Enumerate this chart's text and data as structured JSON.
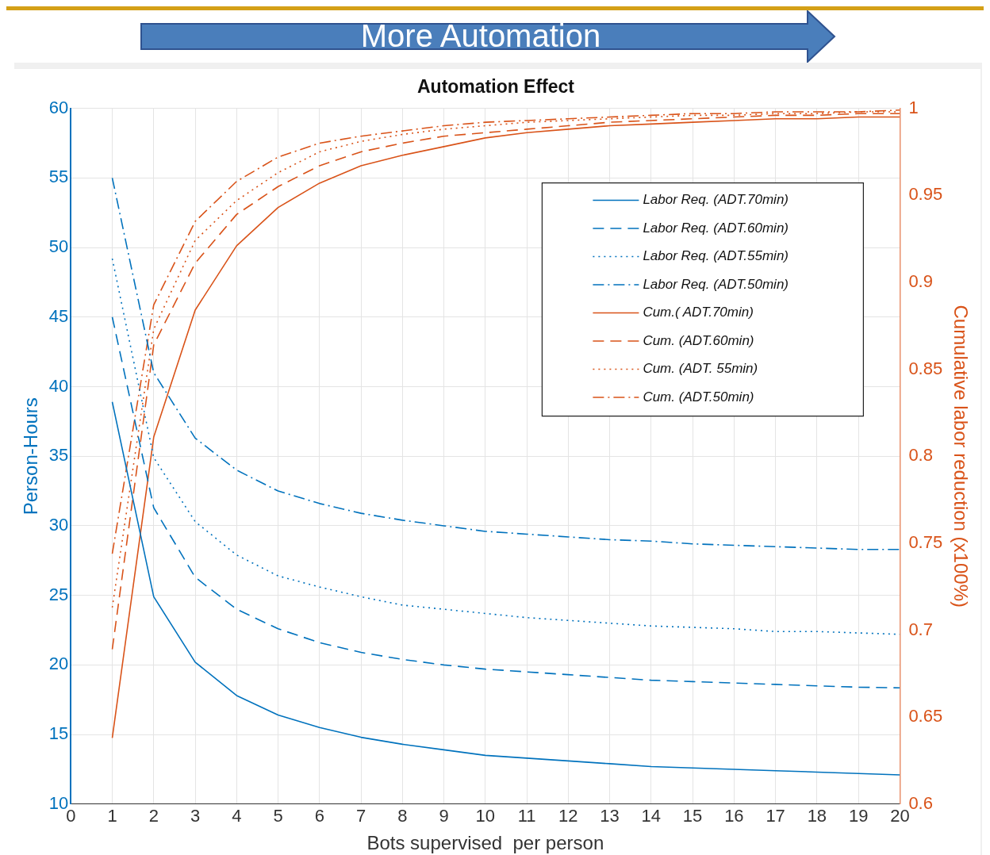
{
  "chart_data": {
    "type": "line",
    "title": "Automation Effect",
    "xlabel": "Bots supervised  per person",
    "ylabel": "Person-Hours",
    "y2label": "Cumulative labor reduction (x100%)",
    "annotations": [
      "More Automation"
    ],
    "x": [
      1,
      2,
      3,
      4,
      5,
      6,
      7,
      8,
      9,
      10,
      11,
      12,
      13,
      14,
      15,
      16,
      17,
      18,
      19,
      20
    ],
    "xlim": [
      0,
      20
    ],
    "xticks": [
      0,
      1,
      2,
      3,
      4,
      5,
      6,
      7,
      8,
      9,
      10,
      11,
      12,
      13,
      14,
      15,
      16,
      17,
      18,
      19,
      20
    ],
    "ylim": [
      10,
      60
    ],
    "yticks": [
      10,
      15,
      20,
      25,
      30,
      35,
      40,
      45,
      50,
      55,
      60
    ],
    "y2lim": [
      0.6,
      1
    ],
    "y2ticks": [
      0.6,
      0.65,
      0.7,
      0.75,
      0.8,
      0.85,
      0.9,
      0.95,
      1
    ],
    "grid": true,
    "legend": "top right",
    "series": [
      {
        "name": "Labor Req. (ADT.70min)",
        "color": "#0072bd",
        "line_style": "solid",
        "values": [
          38.9,
          24.9,
          20.2,
          17.8,
          16.4,
          15.5,
          14.8,
          14.3,
          13.9,
          13.5,
          13.3,
          13.1,
          12.9,
          12.7,
          12.6,
          12.5,
          12.4,
          12.3,
          12.2,
          12.1
        ]
      },
      {
        "name": "Labor Req. (ADT.60min)",
        "color": "#0072bd",
        "line_style": "dashed",
        "values": [
          45,
          31.3,
          26.3,
          24.0,
          22.6,
          21.6,
          20.9,
          20.4,
          20.0,
          19.7,
          19.5,
          19.3,
          19.1,
          18.9,
          18.8,
          18.7,
          18.6,
          18.5,
          18.4,
          18.35
        ]
      },
      {
        "name": "Labor Req. (ADT.55min)",
        "color": "#0072bd",
        "line_style": "dotted",
        "values": [
          49.2,
          34.9,
          30.3,
          27.9,
          26.4,
          25.6,
          24.9,
          24.3,
          24.0,
          23.7,
          23.4,
          23.2,
          23.0,
          22.8,
          22.7,
          22.6,
          22.4,
          22.4,
          22.3,
          22.2
        ]
      },
      {
        "name": "Labor Req. (ADT.50min)",
        "color": "#0072bd",
        "line_style": "dashdot",
        "values": [
          55,
          41.0,
          36.3,
          34.0,
          32.5,
          31.6,
          30.9,
          30.4,
          30.0,
          29.6,
          29.4,
          29.2,
          29.0,
          28.9,
          28.7,
          28.6,
          28.5,
          28.4,
          28.3,
          28.3
        ]
      },
      {
        "name": "Cum.( ADT.70min)",
        "color": "#d95319",
        "line_style": "solid",
        "axis": "y2",
        "values": [
          0.638,
          0.811,
          0.884,
          0.921,
          0.943,
          0.957,
          0.967,
          0.973,
          0.978,
          0.983,
          0.986,
          0.988,
          0.99,
          0.991,
          0.992,
          0.993,
          0.994,
          0.994,
          0.995,
          0.995
        ]
      },
      {
        "name": "Cum. (ADT.60min)",
        "color": "#d95319",
        "line_style": "dashed",
        "axis": "y2",
        "values": [
          0.689,
          0.864,
          0.911,
          0.939,
          0.955,
          0.967,
          0.975,
          0.98,
          0.984,
          0.986,
          0.988,
          0.99,
          0.992,
          0.993,
          0.994,
          0.995,
          0.996,
          0.996,
          0.997,
          0.997
        ]
      },
      {
        "name": "Cum. (ADT. 55min)",
        "color": "#d95319",
        "line_style": "dotted",
        "axis": "y2",
        "values": [
          0.713,
          0.873,
          0.924,
          0.947,
          0.963,
          0.975,
          0.981,
          0.985,
          0.988,
          0.99,
          0.992,
          0.993,
          0.994,
          0.995,
          0.996,
          0.996,
          0.997,
          0.997,
          0.998,
          0.998
        ]
      },
      {
        "name": "Cum. (ADT.50min)",
        "color": "#d95319",
        "line_style": "dashdot",
        "axis": "y2",
        "values": [
          0.744,
          0.887,
          0.935,
          0.958,
          0.972,
          0.98,
          0.984,
          0.987,
          0.99,
          0.992,
          0.993,
          0.994,
          0.995,
          0.996,
          0.997,
          0.997,
          0.998,
          0.998,
          0.998,
          0.999
        ]
      }
    ]
  }
}
